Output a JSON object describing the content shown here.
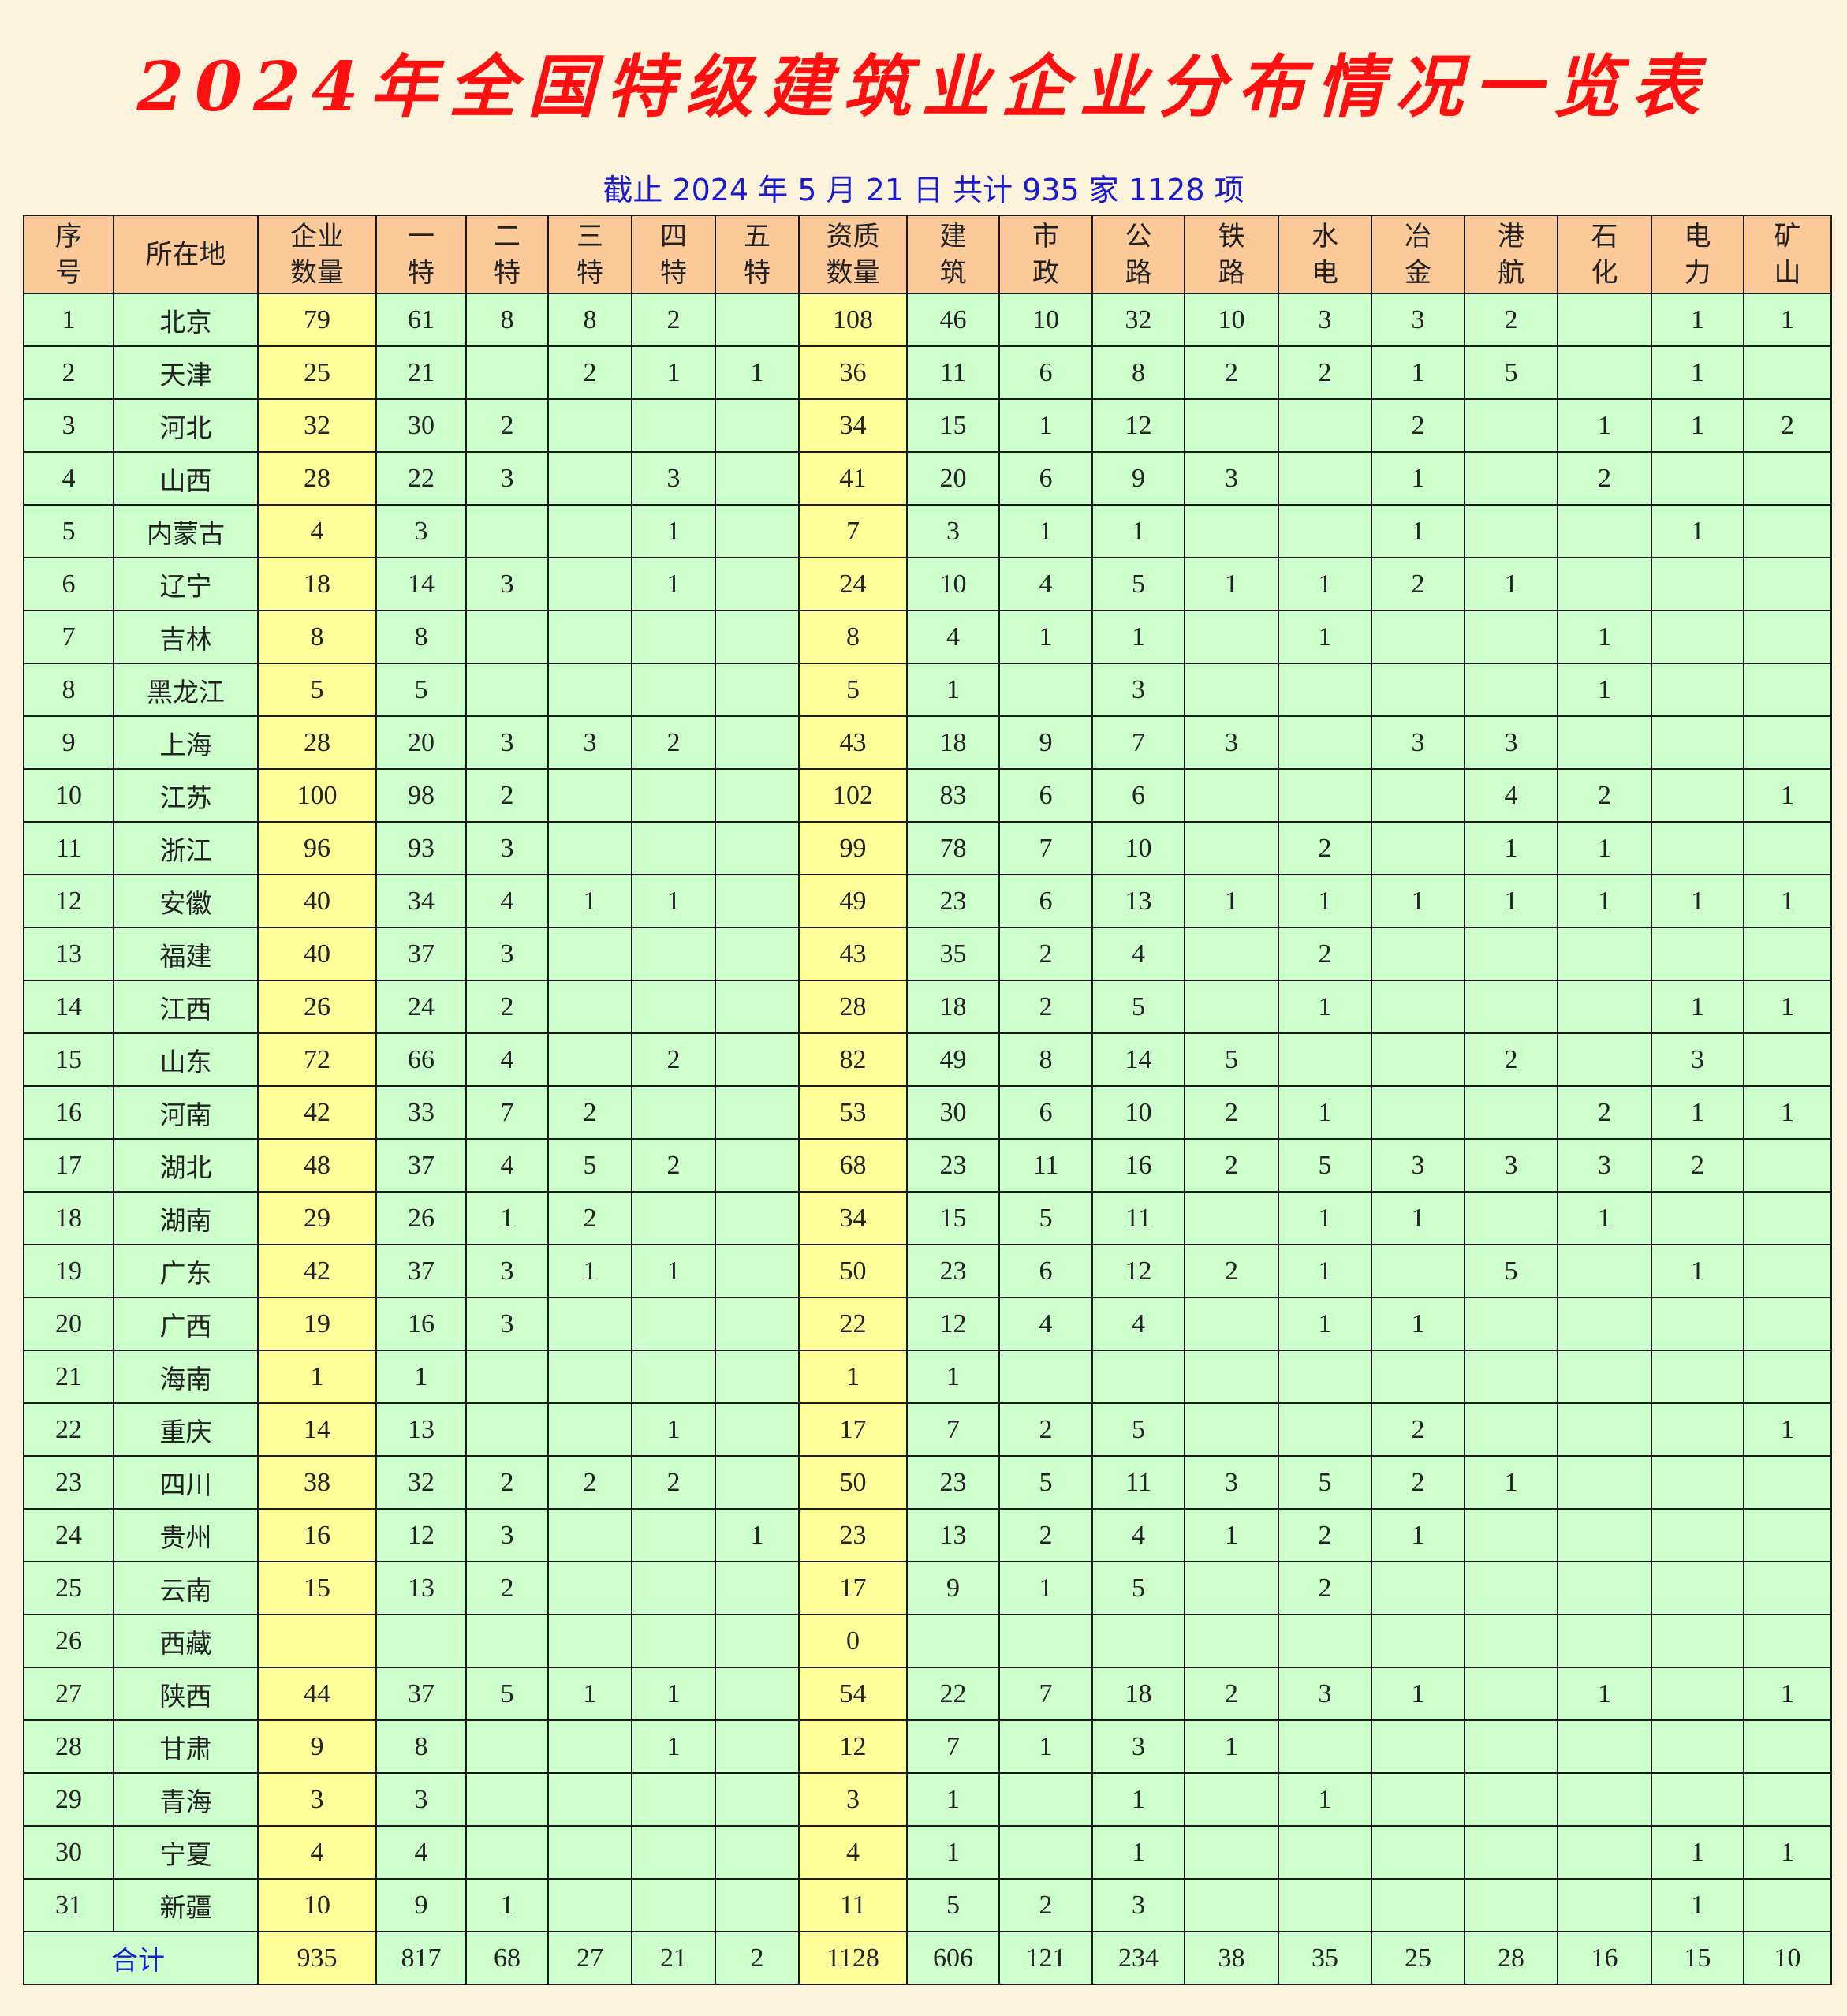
{
  "title": "2024年全国特级建筑业企业分布情况一览表",
  "subtitle": "截止 2024 年 5 月 21 日  共计 935 家 1128 项",
  "colors": {
    "title": "#ff1010",
    "subtitle": "#1a1ad0",
    "header_bg": "#fcc999",
    "cell_bg": "#ccffcc",
    "highlight_bg": "#ffff99"
  },
  "table": {
    "headers": [
      "序\n号",
      "所在地",
      "企业\n数量",
      "一\n特",
      "二\n特",
      "三\n特",
      "四\n特",
      "五\n特",
      "资质\n数量",
      "建\n筑",
      "市\n政",
      "公\n路",
      "铁\n路",
      "水\n电",
      "冶\n金",
      "港\n航",
      "石\n化",
      "电\n力",
      "矿\n山"
    ],
    "rows": [
      [
        "1",
        "北京",
        "79",
        "61",
        "8",
        "8",
        "2",
        "",
        "108",
        "46",
        "10",
        "32",
        "10",
        "3",
        "3",
        "2",
        "",
        "1",
        "1"
      ],
      [
        "2",
        "天津",
        "25",
        "21",
        "",
        "2",
        "1",
        "1",
        "36",
        "11",
        "6",
        "8",
        "2",
        "2",
        "1",
        "5",
        "",
        "1",
        ""
      ],
      [
        "3",
        "河北",
        "32",
        "30",
        "2",
        "",
        "",
        "",
        "34",
        "15",
        "1",
        "12",
        "",
        "",
        "2",
        "",
        "1",
        "1",
        "2"
      ],
      [
        "4",
        "山西",
        "28",
        "22",
        "3",
        "",
        "3",
        "",
        "41",
        "20",
        "6",
        "9",
        "3",
        "",
        "1",
        "",
        "2",
        "",
        ""
      ],
      [
        "5",
        "内蒙古",
        "4",
        "3",
        "",
        "",
        "1",
        "",
        "7",
        "3",
        "1",
        "1",
        "",
        "",
        "1",
        "",
        "",
        "1",
        ""
      ],
      [
        "6",
        "辽宁",
        "18",
        "14",
        "3",
        "",
        "1",
        "",
        "24",
        "10",
        "4",
        "5",
        "1",
        "1",
        "2",
        "1",
        "",
        "",
        ""
      ],
      [
        "7",
        "吉林",
        "8",
        "8",
        "",
        "",
        "",
        "",
        "8",
        "4",
        "1",
        "1",
        "",
        "1",
        "",
        "",
        "1",
        "",
        ""
      ],
      [
        "8",
        "黑龙江",
        "5",
        "5",
        "",
        "",
        "",
        "",
        "5",
        "1",
        "",
        "3",
        "",
        "",
        "",
        "",
        "1",
        "",
        ""
      ],
      [
        "9",
        "上海",
        "28",
        "20",
        "3",
        "3",
        "2",
        "",
        "43",
        "18",
        "9",
        "7",
        "3",
        "",
        "3",
        "3",
        "",
        "",
        ""
      ],
      [
        "10",
        "江苏",
        "100",
        "98",
        "2",
        "",
        "",
        "",
        "102",
        "83",
        "6",
        "6",
        "",
        "",
        "",
        "4",
        "2",
        "",
        "1"
      ],
      [
        "11",
        "浙江",
        "96",
        "93",
        "3",
        "",
        "",
        "",
        "99",
        "78",
        "7",
        "10",
        "",
        "2",
        "",
        "1",
        "1",
        "",
        ""
      ],
      [
        "12",
        "安徽",
        "40",
        "34",
        "4",
        "1",
        "1",
        "",
        "49",
        "23",
        "6",
        "13",
        "1",
        "1",
        "1",
        "1",
        "1",
        "1",
        "1"
      ],
      [
        "13",
        "福建",
        "40",
        "37",
        "3",
        "",
        "",
        "",
        "43",
        "35",
        "2",
        "4",
        "",
        "2",
        "",
        "",
        "",
        "",
        ""
      ],
      [
        "14",
        "江西",
        "26",
        "24",
        "2",
        "",
        "",
        "",
        "28",
        "18",
        "2",
        "5",
        "",
        "1",
        "",
        "",
        "",
        "1",
        "1"
      ],
      [
        "15",
        "山东",
        "72",
        "66",
        "4",
        "",
        "2",
        "",
        "82",
        "49",
        "8",
        "14",
        "5",
        "",
        "",
        "2",
        "",
        "3",
        ""
      ],
      [
        "16",
        "河南",
        "42",
        "33",
        "7",
        "2",
        "",
        "",
        "53",
        "30",
        "6",
        "10",
        "2",
        "1",
        "",
        "",
        "2",
        "1",
        "1"
      ],
      [
        "17",
        "湖北",
        "48",
        "37",
        "4",
        "5",
        "2",
        "",
        "68",
        "23",
        "11",
        "16",
        "2",
        "5",
        "3",
        "3",
        "3",
        "2",
        ""
      ],
      [
        "18",
        "湖南",
        "29",
        "26",
        "1",
        "2",
        "",
        "",
        "34",
        "15",
        "5",
        "11",
        "",
        "1",
        "1",
        "",
        "1",
        "",
        ""
      ],
      [
        "19",
        "广东",
        "42",
        "37",
        "3",
        "1",
        "1",
        "",
        "50",
        "23",
        "6",
        "12",
        "2",
        "1",
        "",
        "5",
        "",
        "1",
        ""
      ],
      [
        "20",
        "广西",
        "19",
        "16",
        "3",
        "",
        "",
        "",
        "22",
        "12",
        "4",
        "4",
        "",
        "1",
        "1",
        "",
        "",
        "",
        ""
      ],
      [
        "21",
        "海南",
        "1",
        "1",
        "",
        "",
        "",
        "",
        "1",
        "1",
        "",
        "",
        "",
        "",
        "",
        "",
        "",
        "",
        ""
      ],
      [
        "22",
        "重庆",
        "14",
        "13",
        "",
        "",
        "1",
        "",
        "17",
        "7",
        "2",
        "5",
        "",
        "",
        "2",
        "",
        "",
        "",
        "1"
      ],
      [
        "23",
        "四川",
        "38",
        "32",
        "2",
        "2",
        "2",
        "",
        "50",
        "23",
        "5",
        "11",
        "3",
        "5",
        "2",
        "1",
        "",
        "",
        ""
      ],
      [
        "24",
        "贵州",
        "16",
        "12",
        "3",
        "",
        "",
        "1",
        "23",
        "13",
        "2",
        "4",
        "1",
        "2",
        "1",
        "",
        "",
        "",
        ""
      ],
      [
        "25",
        "云南",
        "15",
        "13",
        "2",
        "",
        "",
        "",
        "17",
        "9",
        "1",
        "5",
        "",
        "2",
        "",
        "",
        "",
        "",
        ""
      ],
      [
        "26",
        "西藏",
        "",
        "",
        "",
        "",
        "",
        "",
        "0",
        "",
        "",
        "",
        "",
        "",
        "",
        "",
        "",
        "",
        ""
      ],
      [
        "27",
        "陕西",
        "44",
        "37",
        "5",
        "1",
        "1",
        "",
        "54",
        "22",
        "7",
        "18",
        "2",
        "3",
        "1",
        "",
        "1",
        "",
        "1"
      ],
      [
        "28",
        "甘肃",
        "9",
        "8",
        "",
        "",
        "1",
        "",
        "12",
        "7",
        "1",
        "3",
        "1",
        "",
        "",
        "",
        "",
        "",
        ""
      ],
      [
        "29",
        "青海",
        "3",
        "3",
        "",
        "",
        "",
        "",
        "3",
        "1",
        "",
        "1",
        "",
        "1",
        "",
        "",
        "",
        "",
        ""
      ],
      [
        "30",
        "宁夏",
        "4",
        "4",
        "",
        "",
        "",
        "",
        "4",
        "1",
        "",
        "1",
        "",
        "",
        "",
        "",
        "",
        "1",
        "1"
      ],
      [
        "31",
        "新疆",
        "10",
        "9",
        "1",
        "",
        "",
        "",
        "11",
        "5",
        "2",
        "3",
        "",
        "",
        "",
        "",
        "",
        "1",
        ""
      ]
    ],
    "total": {
      "label": "合计",
      "values": [
        "935",
        "817",
        "68",
        "27",
        "21",
        "2",
        "1128",
        "606",
        "121",
        "234",
        "38",
        "35",
        "25",
        "28",
        "16",
        "15",
        "10"
      ]
    }
  }
}
